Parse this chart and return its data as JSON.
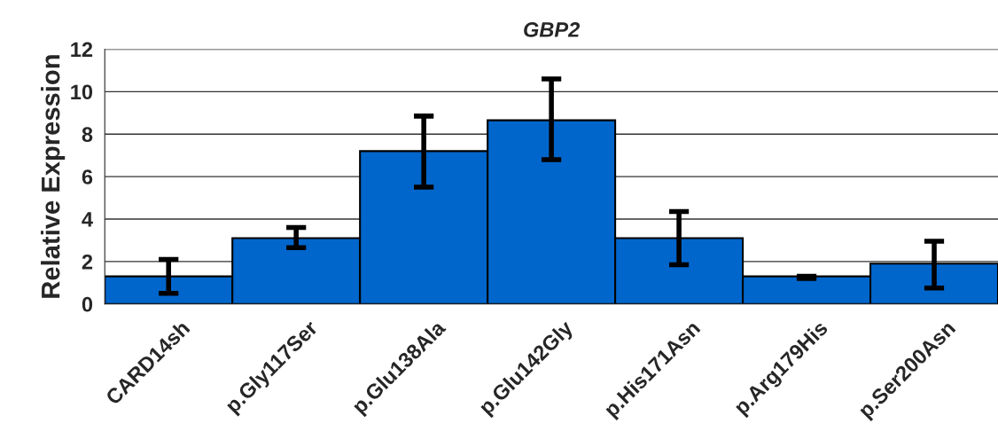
{
  "chart_data": {
    "type": "bar",
    "title": "GBP2",
    "ylabel": "Relative Expression",
    "categories": [
      "CARD14sh",
      "p.Gly117Ser",
      "p.Glu138Ala",
      "p.Glu142Gly",
      "p.His171Asn",
      "p.Arg179His",
      "p.Ser200Asn"
    ],
    "values": [
      1.3,
      3.1,
      7.2,
      8.65,
      3.1,
      1.3,
      1.9
    ],
    "errors": [
      [
        0.5,
        2.1
      ],
      [
        2.65,
        3.6
      ],
      [
        5.5,
        8.85
      ],
      [
        6.8,
        10.6
      ],
      [
        1.85,
        4.35
      ],
      [
        1.2,
        1.3
      ],
      [
        0.75,
        2.95
      ]
    ],
    "color": "#0066cc",
    "ylim": [
      0,
      12
    ],
    "yticks": [
      0,
      2,
      4,
      6,
      8,
      10,
      12
    ],
    "grid": "y"
  }
}
